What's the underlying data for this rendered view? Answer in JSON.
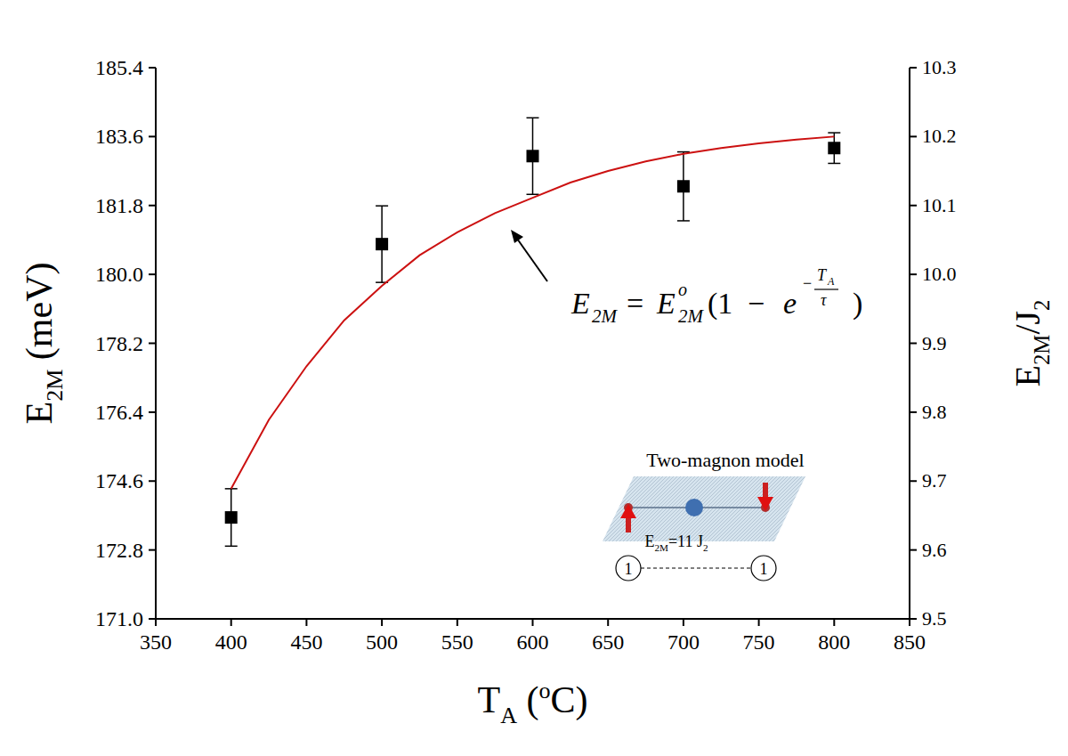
{
  "chart_data": {
    "type": "scatter",
    "xlabel": [
      "T",
      "A",
      " (",
      "o",
      "C)"
    ],
    "ylabel": [
      "E",
      "2M",
      " (meV)"
    ],
    "y2label": [
      "E",
      "2M",
      "/J",
      "2"
    ],
    "xlim": [
      350,
      850
    ],
    "xticks": [
      350,
      400,
      450,
      500,
      550,
      600,
      650,
      700,
      750,
      800,
      850
    ],
    "ylim": [
      171,
      185.4
    ],
    "yticks": [
      {
        "value": 171,
        "label": "171.0"
      },
      172.8,
      174.6,
      176.4,
      178.2,
      {
        "value": 180,
        "label": "180.0"
      },
      181.8,
      183.6,
      185.4
    ],
    "y2lim": [
      9.5,
      10.3
    ],
    "y2ticks": [
      9.5,
      9.6,
      9.7,
      9.8,
      9.9,
      {
        "value": 10,
        "label": "10.0"
      },
      10.1,
      10.2,
      10.3
    ],
    "grid": false,
    "series": [
      {
        "type": "scatter",
        "marker": "square",
        "color": "#000000",
        "x": [
          400,
          500,
          600,
          700,
          800
        ],
        "values": [
          173.65,
          180.79,
          183.09,
          182.3,
          183.3
        ],
        "errors": [
          0.75,
          1.0,
          1.0,
          0.9,
          0.4
        ]
      },
      {
        "type": "line",
        "line_style": "solid",
        "color": "#cc1111",
        "x": [
          400,
          425,
          450,
          475,
          500,
          525,
          550,
          575,
          600,
          625,
          650,
          675,
          700,
          725,
          750,
          775,
          800
        ],
        "values": [
          174.4,
          176.2,
          177.6,
          178.8,
          179.7,
          180.5,
          181.1,
          181.6,
          182.0,
          182.4,
          182.7,
          182.95,
          183.15,
          183.3,
          183.42,
          183.52,
          183.6
        ]
      }
    ],
    "annotation": [
      "E",
      "2M",
      "=",
      "E",
      "o",
      "2M",
      "(1",
      "−",
      "e",
      "−",
      "T",
      "A",
      "τ",
      ")"
    ],
    "inset": {
      "title": "Two-magnon model",
      "label": [
        "E",
        "2M",
        "=11 J",
        "2"
      ],
      "sites": [
        "1",
        "1"
      ]
    }
  }
}
